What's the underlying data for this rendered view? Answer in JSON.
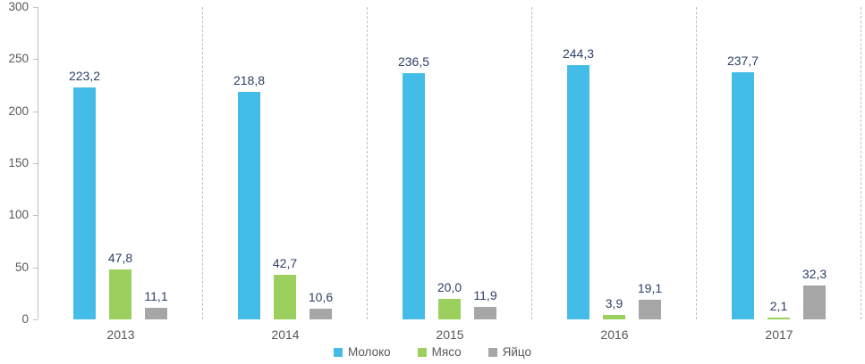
{
  "chart_data": {
    "type": "bar",
    "categories": [
      "2013",
      "2014",
      "2015",
      "2016",
      "2017"
    ],
    "series": [
      {
        "name": "Молоко",
        "color": "#43BDE7",
        "values": [
          223.2,
          218.8,
          236.5,
          244.3,
          237.7
        ],
        "labels": [
          "223,2",
          "218,8",
          "236,5",
          "244,3",
          "237,7"
        ]
      },
      {
        "name": "Мясо",
        "color": "#9CD05E",
        "values": [
          47.8,
          42.7,
          20.0,
          3.9,
          2.1
        ],
        "labels": [
          "47,8",
          "42,7",
          "20,0",
          "3,9",
          "2,1"
        ]
      },
      {
        "name": "Яйцо",
        "color": "#A6A6A6",
        "values": [
          11.1,
          10.6,
          11.9,
          19.1,
          32.3
        ],
        "labels": [
          "11,1",
          "10,6",
          "11,9",
          "19,1",
          "32,3"
        ]
      }
    ],
    "y_axis": {
      "min": 0,
      "max": 300,
      "step": 50,
      "tick_labels": [
        "0",
        "50",
        "100",
        "150",
        "200",
        "250",
        "300"
      ]
    },
    "legend": {
      "position": "bottom",
      "entries": [
        "Молоко",
        "Мясо",
        "Яйцо"
      ]
    },
    "grid": "dashed vertical separators between category groups",
    "colors": {
      "axis": "#BFBFBF",
      "separator": "#BFBFBF",
      "tick_text": "#595959",
      "value_label_text": "#2E4067",
      "category_text": "#595959",
      "legend_text": "#595959"
    }
  }
}
